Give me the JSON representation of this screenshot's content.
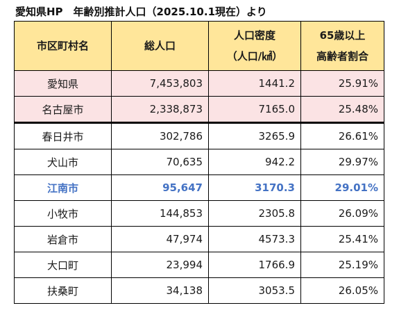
{
  "title": "愛知県HP　年齢別推計人口（2025.10.1現在）より",
  "table": {
    "headers": {
      "municipality": "市区町村名",
      "population": "総人口",
      "density_line1": "人口密度",
      "density_line2": "（人口/㎢）",
      "elderly_line1": "65歳以上",
      "elderly_line2": "高齢者割合"
    },
    "rows": [
      {
        "name": "愛知県",
        "population": "7,453,803",
        "density": "1441.2",
        "elderly_ratio": "25.91%"
      },
      {
        "name": "名古屋市",
        "population": "2,338,873",
        "density": "7165.0",
        "elderly_ratio": "25.48%"
      },
      {
        "name": "春日井市",
        "population": "302,786",
        "density": "3265.9",
        "elderly_ratio": "26.61%"
      },
      {
        "name": "犬山市",
        "population": "70,635",
        "density": "942.2",
        "elderly_ratio": "29.97%"
      },
      {
        "name": "江南市",
        "population": "95,647",
        "density": "3170.3",
        "elderly_ratio": "29.01%"
      },
      {
        "name": "小牧市",
        "population": "144,853",
        "density": "2305.8",
        "elderly_ratio": "26.09%"
      },
      {
        "name": "岩倉市",
        "population": "47,974",
        "density": "4573.3",
        "elderly_ratio": "25.41%"
      },
      {
        "name": "大口町",
        "population": "23,994",
        "density": "1766.9",
        "elderly_ratio": "25.19%"
      },
      {
        "name": "扶桑町",
        "population": "34,138",
        "density": "3053.5",
        "elderly_ratio": "26.05%"
      }
    ]
  },
  "colors": {
    "header_background": "#ffe69a",
    "reference_row_background": "#fbe3e4",
    "highlight_text": "#4472c4"
  }
}
